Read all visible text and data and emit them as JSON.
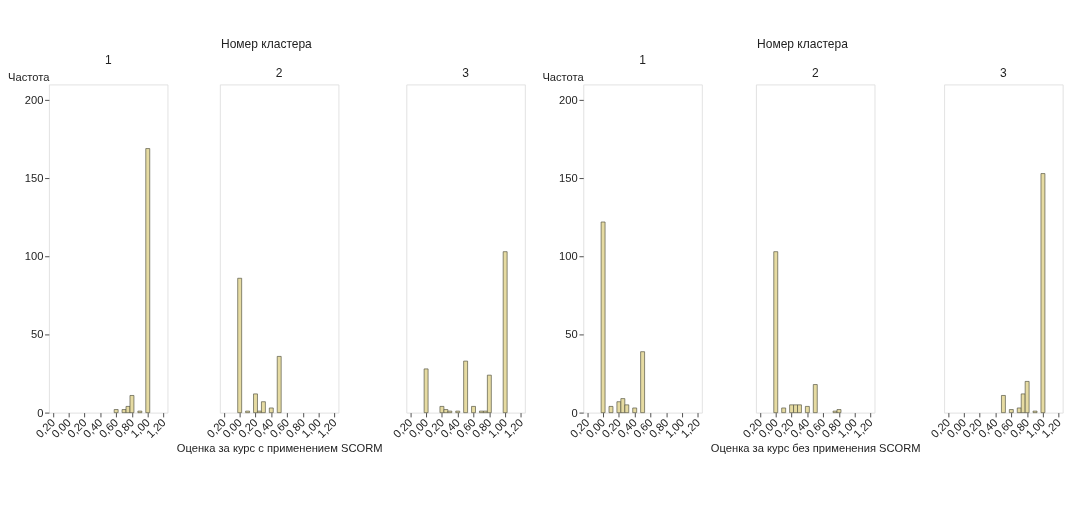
{
  "chart_data": [
    {
      "type": "histogram",
      "subtitle": "1",
      "ylabel": "Частота",
      "color": "#e6dba2",
      "bins": [
        -0.025,
        0.025,
        0.075,
        0.125,
        0.175,
        0.225,
        0.275,
        0.325,
        0.375,
        0.425,
        0.475,
        0.525,
        0.575,
        0.625,
        0.675,
        0.725,
        0.775,
        0.825,
        0.875,
        0.925,
        0.975,
        1.025
      ],
      "values": [
        0,
        0,
        0,
        0,
        0,
        0,
        0,
        0,
        0,
        0,
        0,
        0,
        2,
        0,
        2,
        4,
        11,
        0,
        1,
        0,
        169
      ],
      "xlim": [
        -0.25,
        1.25
      ],
      "ylim": [
        0,
        210
      ],
      "xticks": [
        {
          "value": -0.2,
          "label": "0,20"
        },
        {
          "value": 0,
          "label": "0,00"
        },
        {
          "value": 0.2,
          "label": "0,20"
        },
        {
          "value": 0.4,
          "label": "0,40"
        },
        {
          "value": 0.6,
          "label": "0,60"
        },
        {
          "value": 0.8,
          "label": "0,80"
        },
        {
          "value": 1.0,
          "label": "1,00"
        },
        {
          "value": 1.2,
          "label": "1,20"
        }
      ],
      "yticks": [
        0,
        50,
        100,
        150,
        200
      ],
      "grid": false
    },
    {
      "type": "histogram",
      "title": "Номер кластера",
      "subtitle": "2",
      "xlabel": "Оценка за курс с применением SCORM",
      "color": "#e6dba2",
      "bins": [
        -0.025,
        0.025,
        0.075,
        0.125,
        0.175,
        0.225,
        0.275,
        0.325,
        0.375,
        0.425,
        0.475,
        0.525,
        0.575,
        0.625,
        0.675,
        0.725,
        0.775,
        0.825,
        0.875,
        0.925,
        0.975,
        1.025
      ],
      "values": [
        86,
        0,
        1,
        0,
        12,
        1,
        7,
        0,
        3,
        0,
        36,
        0,
        0,
        0,
        0,
        0,
        0,
        0,
        0,
        0,
        0
      ],
      "xlim": [
        -0.25,
        1.25
      ],
      "ylim": [
        0,
        210
      ],
      "xticks": [
        {
          "value": -0.2,
          "label": "0,20"
        },
        {
          "value": 0,
          "label": "0,00"
        },
        {
          "value": 0.2,
          "label": "0,20"
        },
        {
          "value": 0.4,
          "label": "0,40"
        },
        {
          "value": 0.6,
          "label": "0,60"
        },
        {
          "value": 0.8,
          "label": "0,80"
        },
        {
          "value": 1.0,
          "label": "1,00"
        },
        {
          "value": 1.2,
          "label": "1,20"
        }
      ],
      "yticks": [
        0,
        50,
        100,
        150,
        200
      ],
      "tick_labels": "x",
      "grid": false
    },
    {
      "type": "histogram",
      "subtitle": "3",
      "color": "#e6dba2",
      "bins": [
        -0.025,
        0.025,
        0.075,
        0.125,
        0.175,
        0.225,
        0.275,
        0.325,
        0.375,
        0.425,
        0.475,
        0.525,
        0.575,
        0.625,
        0.675,
        0.725,
        0.775,
        0.825,
        0.875,
        0.925,
        0.975,
        1.025
      ],
      "values": [
        28,
        0,
        0,
        0,
        4,
        2,
        1,
        0,
        1,
        0,
        33,
        0,
        4,
        0,
        1,
        1,
        24,
        0,
        0,
        0,
        103
      ],
      "xlim": [
        -0.25,
        1.25
      ],
      "ylim": [
        0,
        210
      ],
      "xticks": [
        {
          "value": -0.2,
          "label": "0,20"
        },
        {
          "value": 0,
          "label": "0,00"
        },
        {
          "value": 0.2,
          "label": "0,20"
        },
        {
          "value": 0.4,
          "label": "0,40"
        },
        {
          "value": 0.6,
          "label": "0,60"
        },
        {
          "value": 0.8,
          "label": "0,80"
        },
        {
          "value": 1.0,
          "label": "1,00"
        },
        {
          "value": 1.2,
          "label": "1,20"
        }
      ],
      "yticks": [
        0,
        50,
        100,
        150,
        200
      ],
      "tick_labels": "x",
      "grid": false
    },
    {
      "type": "histogram",
      "subtitle": "1",
      "ylabel": "Частота",
      "color": "#e6dba2",
      "bins": [
        -0.025,
        0.025,
        0.075,
        0.125,
        0.175,
        0.225,
        0.275,
        0.325,
        0.375,
        0.425,
        0.475,
        0.525,
        0.575,
        0.625,
        0.675,
        0.725,
        0.775,
        0.825,
        0.875,
        0.925,
        0.975,
        1.025
      ],
      "values": [
        122,
        0,
        4,
        0,
        7,
        9,
        5,
        0,
        3,
        0,
        39,
        0,
        0,
        0,
        0,
        0,
        0,
        0,
        0,
        0,
        0
      ],
      "xlim": [
        -0.25,
        1.25
      ],
      "ylim": [
        0,
        210
      ],
      "xticks": [
        {
          "value": -0.2,
          "label": "0,20"
        },
        {
          "value": 0,
          "label": "0,00"
        },
        {
          "value": 0.2,
          "label": "0,20"
        },
        {
          "value": 0.4,
          "label": "0,40"
        },
        {
          "value": 0.6,
          "label": "0,60"
        },
        {
          "value": 0.8,
          "label": "0,80"
        },
        {
          "value": 1.0,
          "label": "1,00"
        },
        {
          "value": 1.2,
          "label": "1,20"
        }
      ],
      "yticks": [
        0,
        50,
        100,
        150,
        200
      ],
      "grid": false
    },
    {
      "type": "histogram",
      "title": "Номер кластера",
      "subtitle": "2",
      "xlabel": "Оценка за курс без применения SCORM",
      "color": "#e6dba2",
      "bins": [
        -0.025,
        0.025,
        0.075,
        0.125,
        0.175,
        0.225,
        0.275,
        0.325,
        0.375,
        0.425,
        0.475,
        0.525,
        0.575,
        0.625,
        0.675,
        0.725,
        0.775,
        0.825,
        0.875,
        0.925,
        0.975,
        1.025
      ],
      "values": [
        103,
        0,
        3,
        0,
        5,
        5,
        5,
        0,
        4,
        0,
        18,
        0,
        0,
        0,
        0,
        1,
        2,
        0,
        0,
        0,
        0
      ],
      "xlim": [
        -0.25,
        1.25
      ],
      "ylim": [
        0,
        210
      ],
      "xticks": [
        {
          "value": -0.2,
          "label": "0,20"
        },
        {
          "value": 0,
          "label": "0,00"
        },
        {
          "value": 0.2,
          "label": "0,20"
        },
        {
          "value": 0.4,
          "label": "0,40"
        },
        {
          "value": 0.6,
          "label": "0,60"
        },
        {
          "value": 0.8,
          "label": "0,80"
        },
        {
          "value": 1.0,
          "label": "1,00"
        },
        {
          "value": 1.2,
          "label": "1,20"
        }
      ],
      "yticks": [
        0,
        50,
        100,
        150,
        200
      ],
      "tick_labels": "x",
      "grid": false
    },
    {
      "type": "histogram",
      "subtitle": "3",
      "color": "#e6dba2",
      "bins": [
        -0.025,
        0.025,
        0.075,
        0.125,
        0.175,
        0.225,
        0.275,
        0.325,
        0.375,
        0.425,
        0.475,
        0.525,
        0.575,
        0.625,
        0.675,
        0.725,
        0.775,
        0.825,
        0.875,
        0.925,
        0.975,
        1.025
      ],
      "values": [
        0,
        0,
        0,
        0,
        0,
        0,
        0,
        0,
        0,
        0,
        11,
        0,
        2,
        0,
        3,
        12,
        20,
        0,
        1,
        0,
        153
      ],
      "xlim": [
        -0.25,
        1.25
      ],
      "ylim": [
        0,
        210
      ],
      "xticks": [
        {
          "value": -0.2,
          "label": "0,20"
        },
        {
          "value": 0,
          "label": "0,00"
        },
        {
          "value": 0.2,
          "label": "0,20"
        },
        {
          "value": 0.4,
          "label": "0,40"
        },
        {
          "value": 0.6,
          "label": "0,60"
        },
        {
          "value": 0.8,
          "label": "0,80"
        },
        {
          "value": 1.0,
          "label": "1,00"
        },
        {
          "value": 1.2,
          "label": "1,20"
        }
      ],
      "yticks": [
        0,
        50,
        100,
        150,
        200
      ],
      "tick_labels": "x",
      "grid": false
    }
  ]
}
